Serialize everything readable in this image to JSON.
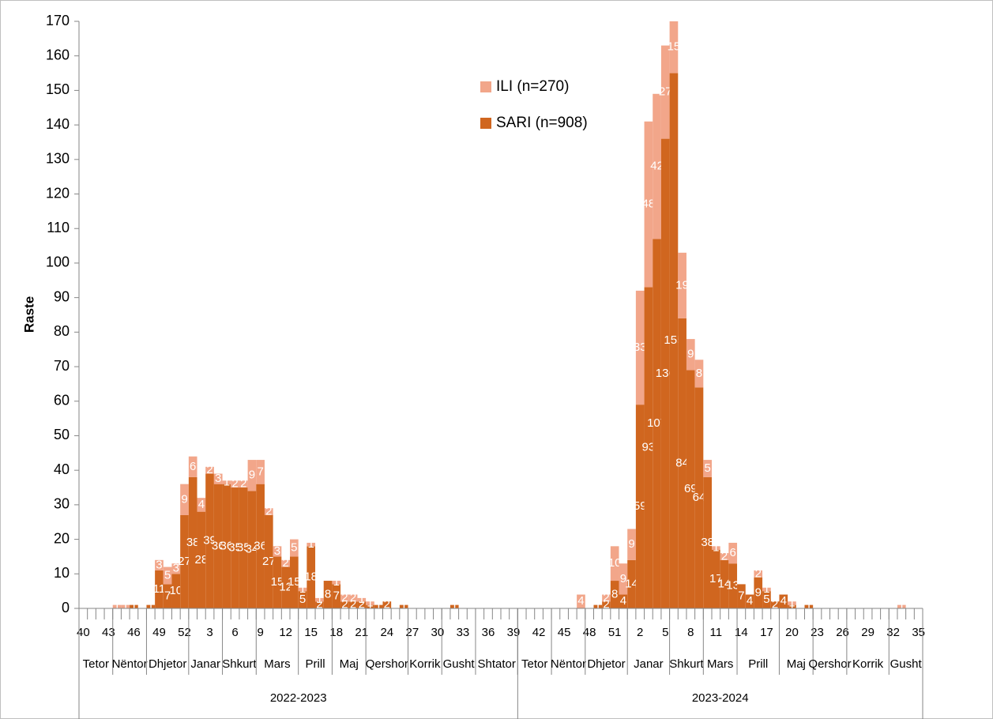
{
  "chart_data": {
    "type": "stacked_bar",
    "y_label": "Raste",
    "ylim": [
      0,
      170
    ],
    "yticks": [
      0,
      10,
      20,
      30,
      40,
      50,
      60,
      70,
      80,
      90,
      100,
      110,
      120,
      130,
      140,
      150,
      160,
      170
    ],
    "grid": false,
    "legend": "top-center",
    "categories": [
      40,
      null,
      null,
      43,
      null,
      null,
      46,
      null,
      null,
      49,
      null,
      null,
      52,
      null,
      null,
      3,
      null,
      null,
      6,
      null,
      null,
      9,
      null,
      null,
      12,
      null,
      null,
      15,
      null,
      null,
      18,
      null,
      null,
      21,
      null,
      null,
      24,
      null,
      null,
      27,
      null,
      null,
      30,
      null,
      null,
      33,
      null,
      null,
      36,
      null,
      null,
      39,
      null,
      null,
      42,
      null,
      null,
      45,
      null,
      null,
      48,
      null,
      null,
      51,
      null,
      null,
      2,
      null,
      null,
      5,
      null,
      null,
      8,
      null,
      null,
      11,
      null,
      null,
      14,
      null,
      null,
      17,
      null,
      null,
      20,
      null,
      null,
      23,
      null,
      null,
      26,
      null,
      null,
      29,
      null,
      null,
      32,
      null,
      null,
      35
    ],
    "x_groups": [
      {
        "label": "2022-2023",
        "months": [
          "Tetor",
          "Nëntor",
          "Dhjetor",
          "Janar",
          "Shkurt",
          "Mars",
          "Prill",
          "Maj",
          "Qershor",
          "Korrik",
          "Gusht",
          "Shtator"
        ]
      },
      {
        "label": "2023-2024",
        "months": [
          "Tetor",
          "Nëntor",
          "Dhjetor",
          "Janar",
          "Shkurt",
          "Mars",
          "Prill",
          "Maj",
          "Qershor",
          "Korrik",
          "Gusht"
        ]
      }
    ],
    "series": [
      {
        "name": "SARI (n=908)",
        "color": "#d0661f",
        "values": [
          0,
          0,
          0,
          0,
          0,
          0,
          1,
          0,
          1,
          11,
          7,
          10,
          27,
          38,
          28,
          39,
          36,
          36,
          35,
          35,
          34,
          36,
          27,
          15,
          12,
          15,
          5,
          18,
          2,
          8,
          7,
          2,
          2,
          2,
          1,
          1,
          2,
          0,
          1,
          0,
          0,
          0,
          0,
          0,
          1,
          0,
          0,
          0,
          0,
          0,
          0,
          0,
          0,
          0,
          0,
          0,
          0,
          0,
          0,
          0,
          0,
          1,
          2,
          8,
          4,
          14,
          59,
          93,
          107,
          136,
          155,
          84,
          69,
          64,
          38,
          17,
          14,
          13,
          7,
          4,
          9,
          5,
          2,
          4,
          1,
          0,
          1,
          0,
          0,
          0,
          0,
          0,
          0,
          0,
          0,
          0,
          0,
          0,
          0,
          0
        ]
      },
      {
        "name": "ILI (n=270)",
        "color": "#f2a68a",
        "values": [
          0,
          0,
          0,
          0,
          1,
          1,
          0,
          0,
          0,
          3,
          5,
          3,
          9,
          6,
          4,
          2,
          3,
          1,
          2,
          2,
          9,
          7,
          2,
          3,
          2,
          5,
          1,
          1,
          1,
          0,
          1,
          2,
          2,
          1,
          1,
          0,
          0,
          0,
          0,
          0,
          0,
          0,
          0,
          0,
          0,
          0,
          0,
          0,
          0,
          0,
          0,
          0,
          0,
          0,
          0,
          0,
          0,
          0,
          0,
          4,
          0,
          0,
          2,
          10,
          9,
          9,
          33,
          48,
          42,
          27,
          15,
          19,
          9,
          8,
          5,
          1,
          2,
          6,
          0,
          0,
          2,
          1,
          0,
          0,
          1,
          0,
          0,
          0,
          0,
          0,
          0,
          0,
          0,
          0,
          0,
          0,
          0,
          1,
          0,
          0
        ]
      }
    ]
  }
}
